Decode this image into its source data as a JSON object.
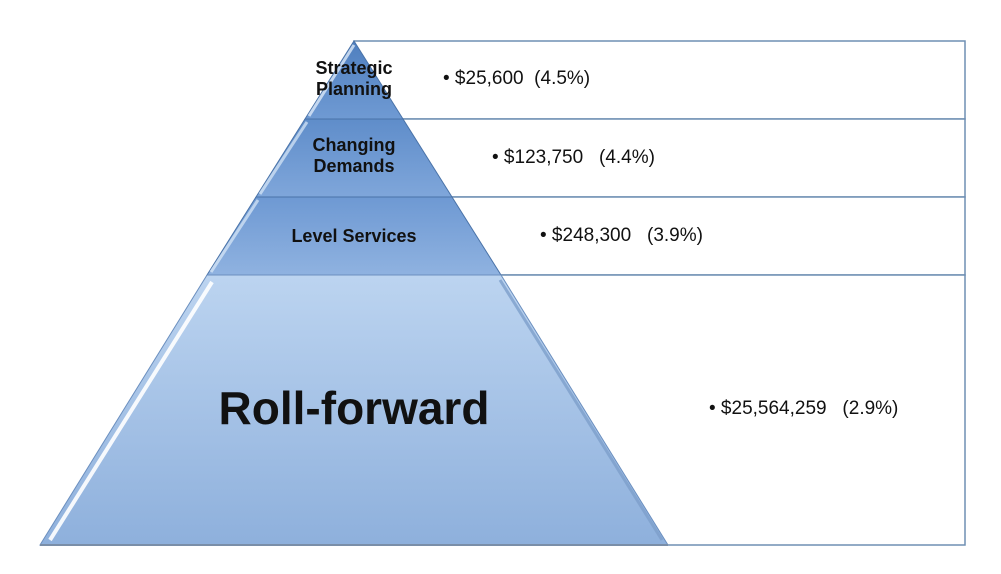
{
  "colors": {
    "box_border": "#6f8fb3",
    "tier_fill_dark": "#5f8fc7",
    "tier_fill_light": "#b9d2ee",
    "text": "#111111"
  },
  "tiers": [
    {
      "label_lines": [
        "Strategic",
        "Planning"
      ],
      "value": "• $25,600  (4.5%)"
    },
    {
      "label_lines": [
        "Changing",
        "Demands"
      ],
      "value": "• $123,750   (4.4%)"
    },
    {
      "label_lines": [
        "Level Services"
      ],
      "value": "• $248,300   (3.9%)"
    },
    {
      "label_lines": [
        "Roll-forward"
      ],
      "value": "• $25,564,259   (2.9%)"
    }
  ]
}
